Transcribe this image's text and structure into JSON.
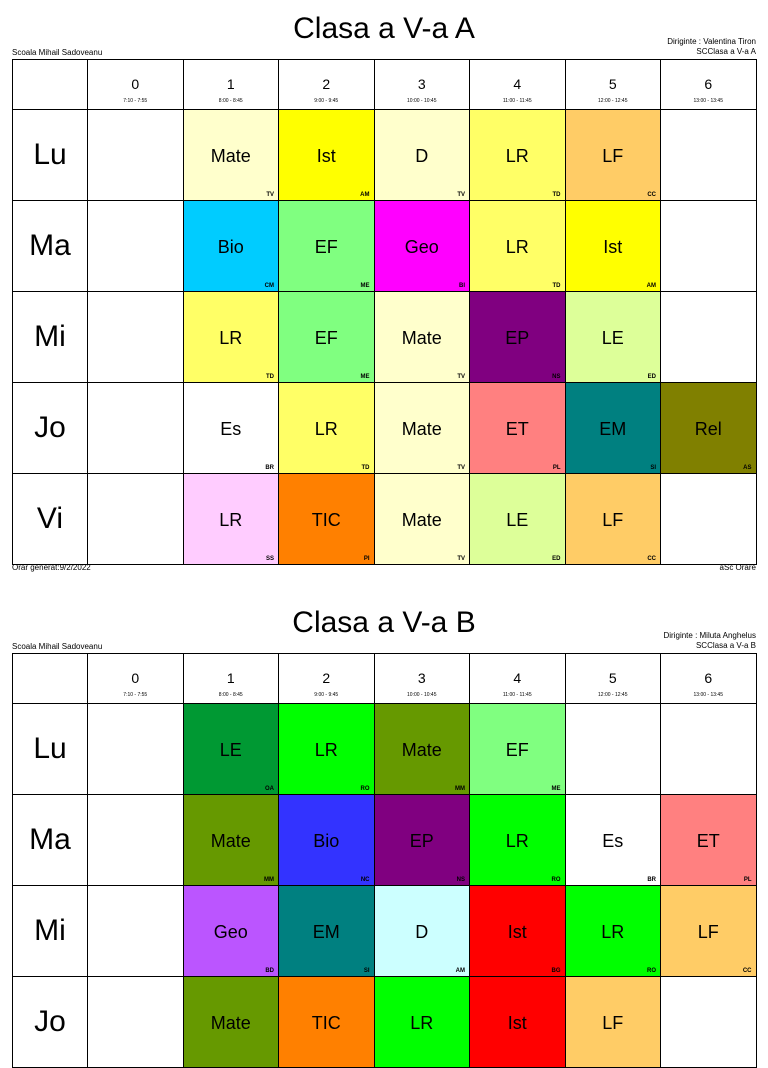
{
  "columns": [
    {
      "num": "0",
      "time": "7:10 - 7:55"
    },
    {
      "num": "1",
      "time": "8:00 - 8:45"
    },
    {
      "num": "2",
      "time": "9:00 - 9:45"
    },
    {
      "num": "3",
      "time": "10:00 - 10:45"
    },
    {
      "num": "4",
      "time": "11:00 - 11:45"
    },
    {
      "num": "5",
      "time": "12:00 - 12:45"
    },
    {
      "num": "6",
      "time": "13:00 - 13:45"
    }
  ],
  "timetables": [
    {
      "title": "Clasa a V-a A",
      "school": "Scoala Mihail Sadoveanu",
      "diriginte": "Diriginte : Valentina Tiron",
      "class_code": "SCClasa a V-a A",
      "footer_left": "Orar generat:9/2/2022",
      "footer_right": "aSc Orare",
      "rows": [
        {
          "day": "Lu",
          "cells": [
            null,
            {
              "s": "Mate",
              "t": "TV",
              "bg": "#ffffcc",
              "fg": "#000"
            },
            {
              "s": "Ist",
              "t": "AM",
              "bg": "#ffff00",
              "fg": "#000"
            },
            {
              "s": "D",
              "t": "TV",
              "bg": "#ffffcc",
              "fg": "#000"
            },
            {
              "s": "LR",
              "t": "TD",
              "bg": "#ffff66",
              "fg": "#000"
            },
            {
              "s": "LF",
              "t": "CC",
              "bg": "#ffcc66",
              "fg": "#000"
            },
            null
          ]
        },
        {
          "day": "Ma",
          "cells": [
            null,
            {
              "s": "Bio",
              "t": "CM",
              "bg": "#00ccff",
              "fg": "#000"
            },
            {
              "s": "EF",
              "t": "ME",
              "bg": "#80ff80",
              "fg": "#000"
            },
            {
              "s": "Geo",
              "t": "BI",
              "bg": "#ff00ff",
              "fg": "#000"
            },
            {
              "s": "LR",
              "t": "TD",
              "bg": "#ffff66",
              "fg": "#000"
            },
            {
              "s": "Ist",
              "t": "AM",
              "bg": "#ffff00",
              "fg": "#000"
            },
            null
          ]
        },
        {
          "day": "Mi",
          "cells": [
            null,
            {
              "s": "LR",
              "t": "TD",
              "bg": "#ffff66",
              "fg": "#000"
            },
            {
              "s": "EF",
              "t": "ME",
              "bg": "#80ff80",
              "fg": "#000"
            },
            {
              "s": "Mate",
              "t": "TV",
              "bg": "#ffffcc",
              "fg": "#000"
            },
            {
              "s": "EP",
              "t": "NS",
              "bg": "#800080",
              "fg": "#000"
            },
            {
              "s": "LE",
              "t": "ED",
              "bg": "#ddff99",
              "fg": "#000"
            },
            null
          ]
        },
        {
          "day": "Jo",
          "cells": [
            null,
            {
              "s": "Es",
              "t": "BR",
              "bg": "#ffffff",
              "fg": "#000"
            },
            {
              "s": "LR",
              "t": "TD",
              "bg": "#ffff66",
              "fg": "#000"
            },
            {
              "s": "Mate",
              "t": "TV",
              "bg": "#ffffcc",
              "fg": "#000"
            },
            {
              "s": "ET",
              "t": "PL",
              "bg": "#ff8080",
              "fg": "#000"
            },
            {
              "s": "EM",
              "t": "SI",
              "bg": "#008080",
              "fg": "#000"
            },
            {
              "s": "Rel",
              "t": "AS",
              "bg": "#808000",
              "fg": "#000"
            }
          ]
        },
        {
          "day": "Vi",
          "cells": [
            null,
            {
              "s": "LR",
              "t": "SS",
              "bg": "#ffccff",
              "fg": "#000"
            },
            {
              "s": "TIC",
              "t": "PI",
              "bg": "#ff8000",
              "fg": "#000"
            },
            {
              "s": "Mate",
              "t": "TV",
              "bg": "#ffffcc",
              "fg": "#000"
            },
            {
              "s": "LE",
              "t": "ED",
              "bg": "#ddff99",
              "fg": "#000"
            },
            {
              "s": "LF",
              "t": "CC",
              "bg": "#ffcc66",
              "fg": "#000"
            },
            null
          ]
        }
      ]
    },
    {
      "title": "Clasa a V-a B",
      "school": "Scoala Mihail Sadoveanu",
      "diriginte": "Diriginte : Miluta Anghelus",
      "class_code": "SCClasa a V-a B",
      "rows": [
        {
          "day": "Lu",
          "cells": [
            null,
            {
              "s": "LE",
              "t": "OA",
              "bg": "#009933",
              "fg": "#000"
            },
            {
              "s": "LR",
              "t": "RO",
              "bg": "#00ff00",
              "fg": "#000"
            },
            {
              "s": "Mate",
              "t": "MM",
              "bg": "#669900",
              "fg": "#000"
            },
            {
              "s": "EF",
              "t": "ME",
              "bg": "#80ff80",
              "fg": "#000"
            },
            null,
            null
          ]
        },
        {
          "day": "Ma",
          "cells": [
            null,
            {
              "s": "Mate",
              "t": "MM",
              "bg": "#669900",
              "fg": "#000"
            },
            {
              "s": "Bio",
              "t": "NC",
              "bg": "#3333ff",
              "fg": "#000"
            },
            {
              "s": "EP",
              "t": "NS",
              "bg": "#800080",
              "fg": "#000"
            },
            {
              "s": "LR",
              "t": "RO",
              "bg": "#00ff00",
              "fg": "#000"
            },
            {
              "s": "Es",
              "t": "BR",
              "bg": "#ffffff",
              "fg": "#000"
            },
            {
              "s": "ET",
              "t": "PL",
              "bg": "#ff8080",
              "fg": "#000"
            }
          ]
        },
        {
          "day": "Mi",
          "cells": [
            null,
            {
              "s": "Geo",
              "t": "BD",
              "bg": "#bb55ff",
              "fg": "#000"
            },
            {
              "s": "EM",
              "t": "SI",
              "bg": "#008080",
              "fg": "#000"
            },
            {
              "s": "D",
              "t": "AM",
              "bg": "#ccffff",
              "fg": "#000"
            },
            {
              "s": "Ist",
              "t": "BG",
              "bg": "#ff0000",
              "fg": "#000"
            },
            {
              "s": "LR",
              "t": "RO",
              "bg": "#00ff00",
              "fg": "#000"
            },
            {
              "s": "LF",
              "t": "CC",
              "bg": "#ffcc66",
              "fg": "#000"
            }
          ]
        },
        {
          "day": "Jo",
          "cells": [
            null,
            {
              "s": "Mate",
              "t": "",
              "bg": "#669900",
              "fg": "#000"
            },
            {
              "s": "TIC",
              "t": "",
              "bg": "#ff8000",
              "fg": "#000"
            },
            {
              "s": "LR",
              "t": "",
              "bg": "#00ff00",
              "fg": "#000"
            },
            {
              "s": "Ist",
              "t": "",
              "bg": "#ff0000",
              "fg": "#000"
            },
            {
              "s": "LF",
              "t": "",
              "bg": "#ffcc66",
              "fg": "#000"
            },
            null
          ]
        }
      ]
    }
  ]
}
